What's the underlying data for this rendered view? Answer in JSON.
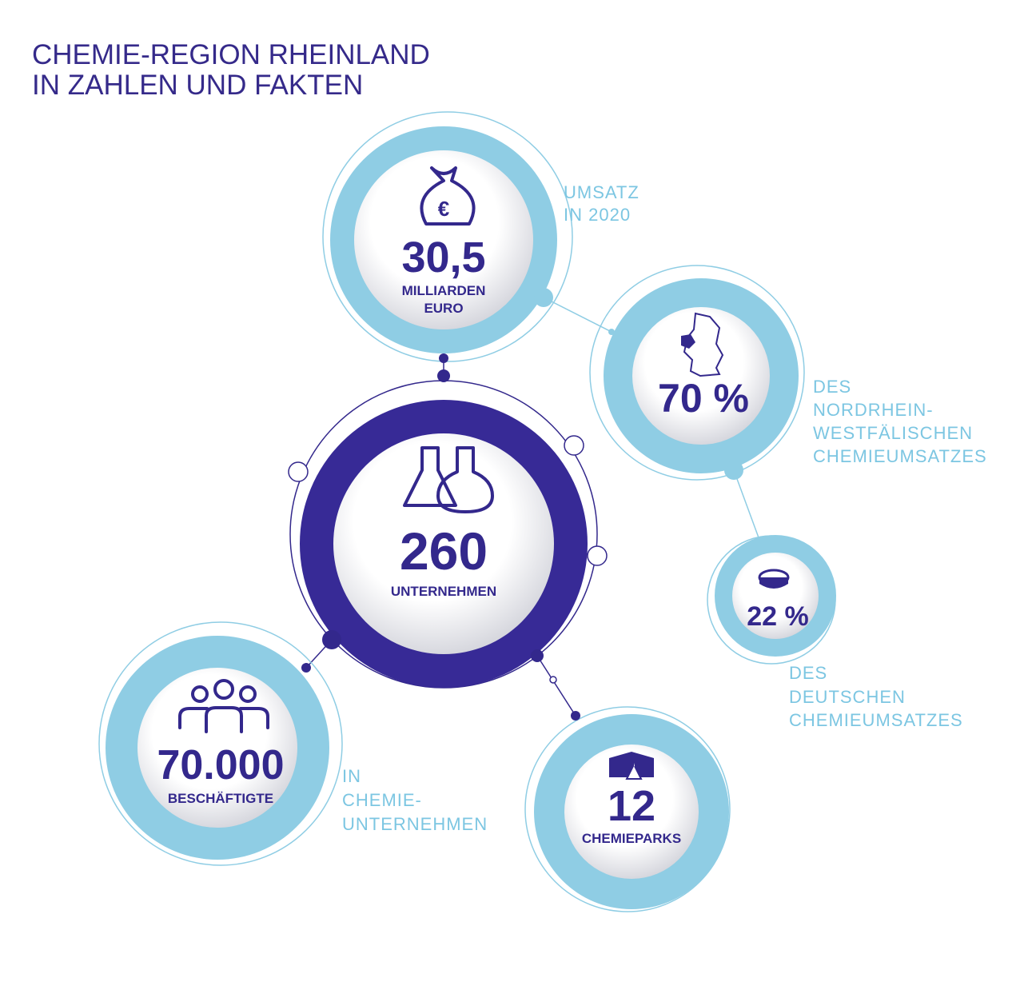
{
  "header": {
    "title": [
      "CHEMIE-REGION RHEINLAND",
      "IN ZAHLEN UND FAKTEN"
    ]
  },
  "nodes": [
    {
      "value": "30,5",
      "unit": [
        "MILLIARDEN",
        "EURO"
      ],
      "caption": [
        "UMSATZ",
        "IN 2020"
      ]
    },
    {
      "value": "70 %",
      "caption": [
        "DES",
        "NORDRHEIN-",
        "WESTFÄLISCHEN",
        "CHEMIEUMSATZES"
      ]
    },
    {
      "value": "22 %",
      "caption": [
        "DES",
        "DEUTSCHEN",
        "CHEMIEUMSATZES"
      ]
    },
    {
      "value": "260",
      "unit": [
        "UNTERNEHMEN"
      ]
    },
    {
      "value": "70.000",
      "unit": [
        "BESCHÄFTIGTE"
      ],
      "caption": [
        "IN",
        "CHEMIE-",
        "UNTERNEHMEN"
      ]
    },
    {
      "value": "12",
      "unit": [
        "CHEMIEPARKS"
      ]
    }
  ]
}
